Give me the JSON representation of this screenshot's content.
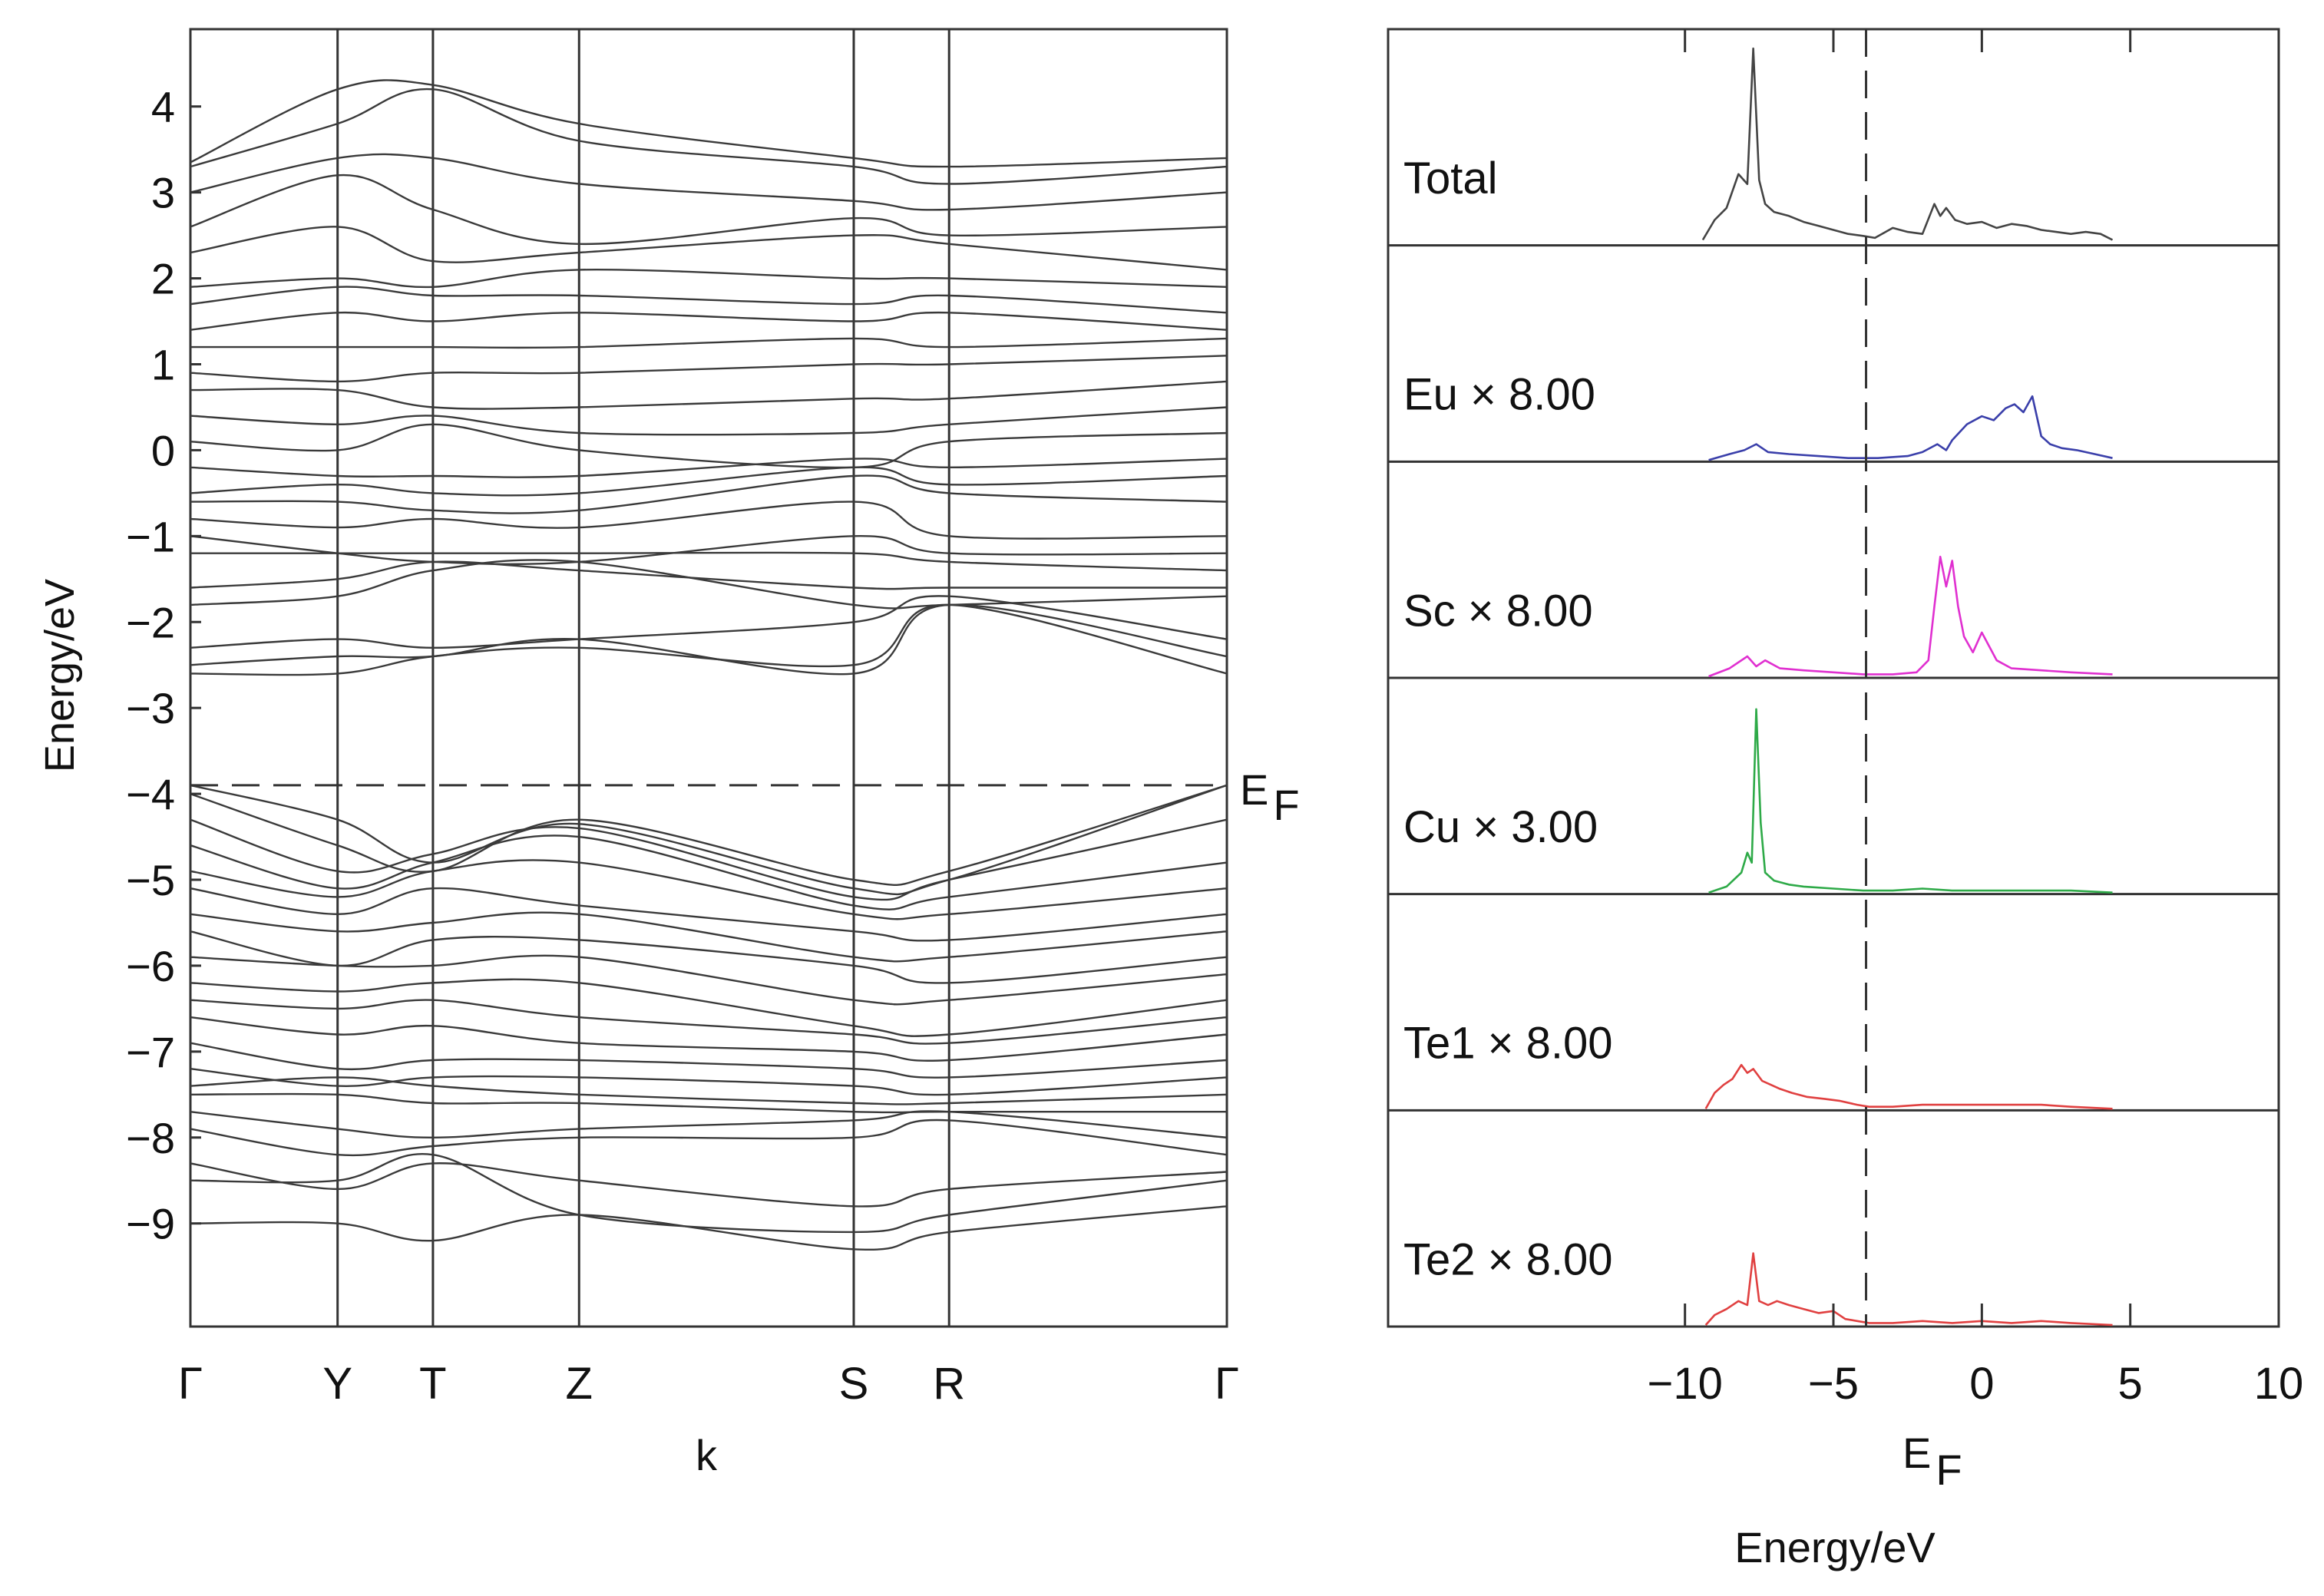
{
  "colors": {
    "axis": "#333333",
    "band": "#3a3a3a",
    "total": "#444444",
    "Eu": "#3a3faa",
    "Sc": "#e030d0",
    "Cu": "#2eaa48",
    "Te1": "#e04040",
    "Te2": "#e04040"
  },
  "chart_data": [
    {
      "type": "line",
      "name": "band_structure",
      "ylabel": "Energy/eV",
      "xlabel": "k",
      "ylim": [
        -10.2,
        4.9
      ],
      "yticks": [
        4,
        3,
        2,
        1,
        0,
        -1,
        -2,
        -3,
        -4,
        -5,
        -6,
        -7,
        -8,
        -9
      ],
      "ytick_labels": [
        "4",
        "3",
        "2",
        "1",
        "0",
        "−1",
        "−2",
        "−3",
        "−4",
        "−5",
        "−6",
        "−7",
        "−8",
        "−9"
      ],
      "kpoints": [
        "Γ",
        "Y",
        "T",
        "Z",
        "S",
        "R",
        "Γ"
      ],
      "kpositions": [
        0,
        0.142,
        0.234,
        0.375,
        0.64,
        0.732,
        1.0
      ],
      "fermi_level": -3.9,
      "fermi_label": "E",
      "fermi_subscript": "F",
      "bands": [
        [
          -9.0,
          -9.0,
          -9.2,
          -8.9,
          -9.3,
          -9.1,
          -8.8
        ],
        [
          -8.5,
          -8.5,
          -8.2,
          -8.9,
          -9.1,
          -8.9,
          -8.5
        ],
        [
          -8.3,
          -8.6,
          -8.3,
          -8.5,
          -8.8,
          -8.6,
          -8.4
        ],
        [
          -7.9,
          -8.2,
          -8.1,
          -8.0,
          -8.0,
          -7.8,
          -8.2
        ],
        [
          -7.7,
          -7.9,
          -8.0,
          -7.9,
          -7.8,
          -7.7,
          -8.0
        ],
        [
          -7.5,
          -7.5,
          -7.6,
          -7.6,
          -7.7,
          -7.7,
          -7.7
        ],
        [
          -7.4,
          -7.3,
          -7.4,
          -7.5,
          -7.6,
          -7.6,
          -7.5
        ],
        [
          -7.2,
          -7.4,
          -7.3,
          -7.3,
          -7.4,
          -7.5,
          -7.3
        ],
        [
          -6.9,
          -7.2,
          -7.1,
          -7.1,
          -7.2,
          -7.3,
          -7.1
        ],
        [
          -6.6,
          -6.8,
          -6.7,
          -6.9,
          -7.0,
          -7.1,
          -6.8
        ],
        [
          -6.4,
          -6.5,
          -6.4,
          -6.6,
          -6.8,
          -6.9,
          -6.6
        ],
        [
          -6.2,
          -6.3,
          -6.2,
          -6.2,
          -6.7,
          -6.8,
          -6.4
        ],
        [
          -5.9,
          -6.0,
          -6.0,
          -5.9,
          -6.4,
          -6.4,
          -6.1
        ],
        [
          -5.6,
          -6.0,
          -5.7,
          -5.7,
          -6.0,
          -6.2,
          -5.9
        ],
        [
          -5.4,
          -5.6,
          -5.5,
          -5.4,
          -5.9,
          -5.9,
          -5.6
        ],
        [
          -5.1,
          -5.4,
          -5.1,
          -5.3,
          -5.6,
          -5.7,
          -5.4
        ],
        [
          -4.9,
          -5.2,
          -4.9,
          -4.8,
          -5.4,
          -5.4,
          -5.1
        ],
        [
          -4.6,
          -5.1,
          -4.8,
          -4.5,
          -5.3,
          -5.2,
          -4.8
        ],
        [
          -4.3,
          -4.9,
          -4.7,
          -4.4,
          -5.2,
          -5.0,
          -4.3
        ],
        [
          -4.0,
          -4.6,
          -4.9,
          -4.3,
          -5.0,
          -4.9,
          -3.9
        ]
      ],
      "valence_bands_top": [
        [
          -3.9,
          -4.3,
          -4.8,
          -4.35,
          -5.1,
          -5.0,
          -3.9
        ]
      ],
      "conduction_bands": [
        [
          -2.6,
          -2.6,
          -2.4,
          -2.3,
          -2.5,
          -1.8,
          -2.6
        ],
        [
          -2.5,
          -2.4,
          -2.4,
          -2.2,
          -2.6,
          -1.8,
          -2.4
        ],
        [
          -2.3,
          -2.2,
          -2.3,
          -2.2,
          -2.0,
          -1.7,
          -2.2
        ],
        [
          -1.8,
          -1.7,
          -1.4,
          -1.3,
          -1.8,
          -1.8,
          -1.7
        ],
        [
          -1.6,
          -1.5,
          -1.3,
          -1.4,
          -1.6,
          -1.6,
          -1.6
        ],
        [
          -1.2,
          -1.2,
          -1.2,
          -1.2,
          -1.2,
          -1.3,
          -1.4
        ],
        [
          -1.0,
          -1.2,
          -1.3,
          -1.3,
          -1.0,
          -1.2,
          -1.2
        ],
        [
          -0.8,
          -0.9,
          -0.8,
          -0.9,
          -0.6,
          -1.0,
          -1.0
        ],
        [
          -0.6,
          -0.6,
          -0.7,
          -0.7,
          -0.3,
          -0.5,
          -0.6
        ],
        [
          -0.5,
          -0.4,
          -0.5,
          -0.5,
          -0.2,
          -0.4,
          -0.3
        ],
        [
          -0.2,
          -0.3,
          -0.3,
          -0.3,
          -0.1,
          -0.2,
          -0.1
        ],
        [
          0.1,
          0.0,
          0.3,
          0.0,
          -0.2,
          0.1,
          0.2
        ],
        [
          0.4,
          0.3,
          0.4,
          0.2,
          0.2,
          0.3,
          0.5
        ],
        [
          0.7,
          0.7,
          0.5,
          0.5,
          0.6,
          0.6,
          0.8
        ],
        [
          0.9,
          0.8,
          0.9,
          0.9,
          1.0,
          1.0,
          1.1
        ],
        [
          1.2,
          1.2,
          1.2,
          1.2,
          1.3,
          1.2,
          1.3
        ],
        [
          1.4,
          1.6,
          1.5,
          1.6,
          1.5,
          1.6,
          1.4
        ],
        [
          1.7,
          1.9,
          1.8,
          1.8,
          1.7,
          1.8,
          1.6
        ],
        [
          1.9,
          2.0,
          1.9,
          2.1,
          2.0,
          2.0,
          1.9
        ],
        [
          2.3,
          2.6,
          2.2,
          2.3,
          2.5,
          2.4,
          2.1
        ],
        [
          2.6,
          3.2,
          2.8,
          2.4,
          2.7,
          2.5,
          2.6
        ],
        [
          3.0,
          3.4,
          3.4,
          3.1,
          2.9,
          2.8,
          3.0
        ],
        [
          3.3,
          3.8,
          4.2,
          3.6,
          3.3,
          3.1,
          3.3
        ],
        [
          3.35,
          4.2,
          4.25,
          3.8,
          3.4,
          3.3,
          3.4
        ]
      ]
    },
    {
      "type": "line",
      "name": "density_of_states",
      "xlabel": "Energy/eV",
      "xlim": [
        -20,
        10
      ],
      "xticks": [
        -10,
        -5,
        0,
        5,
        10
      ],
      "xtick_labels": [
        "−10",
        "−5",
        "0",
        "5",
        "10"
      ],
      "fermi_level": -3.9,
      "fermi_label": "E",
      "fermi_subscript": "F",
      "panels": [
        {
          "label": "Total",
          "color_key": "total",
          "x": [
            -9.4,
            -9.0,
            -8.6,
            -8.2,
            -7.9,
            -7.7,
            -7.5,
            -7.3,
            -7.0,
            -6.5,
            -6.0,
            -5.5,
            -5.0,
            -4.5,
            -4.0,
            -3.6,
            -3.0,
            -2.5,
            -2.0,
            -1.6,
            -1.4,
            -1.2,
            -0.9,
            -0.5,
            0.0,
            0.5,
            1.0,
            1.5,
            2.0,
            2.5,
            3.0,
            3.5,
            4.0,
            4.4
          ],
          "y": [
            0.02,
            0.12,
            0.18,
            0.35,
            0.3,
            0.98,
            0.32,
            0.2,
            0.16,
            0.14,
            0.11,
            0.09,
            0.07,
            0.05,
            0.04,
            0.03,
            0.08,
            0.06,
            0.05,
            0.2,
            0.14,
            0.18,
            0.12,
            0.1,
            0.11,
            0.08,
            0.1,
            0.09,
            0.07,
            0.06,
            0.05,
            0.06,
            0.05,
            0.02
          ]
        },
        {
          "label": "Eu ×  8.00",
          "color_key": "Eu",
          "x": [
            -9.2,
            -8.5,
            -8.0,
            -7.6,
            -7.2,
            -6.5,
            -5.5,
            -4.5,
            -3.5,
            -2.5,
            -2.0,
            -1.5,
            -1.2,
            -1.0,
            -0.5,
            0.0,
            0.4,
            0.8,
            1.1,
            1.4,
            1.7,
            2.0,
            2.3,
            2.7,
            3.2,
            3.8,
            4.4
          ],
          "y": [
            0.0,
            0.03,
            0.05,
            0.08,
            0.04,
            0.03,
            0.02,
            0.01,
            0.01,
            0.02,
            0.04,
            0.08,
            0.05,
            0.1,
            0.18,
            0.22,
            0.2,
            0.26,
            0.28,
            0.24,
            0.32,
            0.12,
            0.08,
            0.06,
            0.05,
            0.03,
            0.01
          ]
        },
        {
          "label": "Sc ×  8.00",
          "color_key": "Sc",
          "x": [
            -9.2,
            -8.5,
            -7.9,
            -7.6,
            -7.3,
            -6.8,
            -6.0,
            -5.0,
            -4.0,
            -3.0,
            -2.2,
            -1.8,
            -1.6,
            -1.4,
            -1.2,
            -1.0,
            -0.8,
            -0.6,
            -0.3,
            0.0,
            0.5,
            1.0,
            2.0,
            3.0,
            4.4
          ],
          "y": [
            0.0,
            0.04,
            0.1,
            0.05,
            0.08,
            0.04,
            0.03,
            0.02,
            0.01,
            0.01,
            0.02,
            0.08,
            0.35,
            0.6,
            0.45,
            0.58,
            0.35,
            0.2,
            0.12,
            0.22,
            0.08,
            0.04,
            0.03,
            0.02,
            0.01
          ]
        },
        {
          "label": "Cu ×  3.00",
          "color_key": "Cu",
          "x": [
            -9.2,
            -8.6,
            -8.1,
            -7.9,
            -7.75,
            -7.6,
            -7.45,
            -7.3,
            -7.0,
            -6.5,
            -6.0,
            -5.0,
            -4.0,
            -3.0,
            -2.0,
            -1.0,
            0.0,
            1.0,
            2.0,
            3.0,
            4.4
          ],
          "y": [
            0.0,
            0.03,
            0.1,
            0.2,
            0.15,
            0.92,
            0.35,
            0.1,
            0.06,
            0.04,
            0.03,
            0.02,
            0.01,
            0.01,
            0.02,
            0.01,
            0.01,
            0.01,
            0.01,
            0.01,
            0.0
          ]
        },
        {
          "label": "Te1 × 8.00",
          "color_key": "Te1",
          "x": [
            -9.3,
            -9.0,
            -8.7,
            -8.4,
            -8.1,
            -7.9,
            -7.7,
            -7.4,
            -7.1,
            -6.8,
            -6.4,
            -5.9,
            -5.3,
            -4.8,
            -4.2,
            -3.8,
            -3.0,
            -2.0,
            -1.0,
            0.0,
            1.0,
            2.0,
            3.0,
            4.4
          ],
          "y": [
            0.0,
            0.08,
            0.12,
            0.15,
            0.22,
            0.18,
            0.2,
            0.14,
            0.12,
            0.1,
            0.08,
            0.06,
            0.05,
            0.04,
            0.02,
            0.01,
            0.01,
            0.02,
            0.02,
            0.02,
            0.02,
            0.02,
            0.01,
            0.0
          ]
        },
        {
          "label": "Te2 × 8.00",
          "color_key": "Te2",
          "x": [
            -9.3,
            -9.0,
            -8.6,
            -8.2,
            -7.9,
            -7.7,
            -7.5,
            -7.2,
            -6.9,
            -6.5,
            -6.0,
            -5.5,
            -5.0,
            -4.6,
            -4.2,
            -3.8,
            -3.0,
            -2.0,
            -1.0,
            0.0,
            1.0,
            2.0,
            3.0,
            4.4
          ],
          "y": [
            0.0,
            0.05,
            0.08,
            0.12,
            0.1,
            0.36,
            0.12,
            0.1,
            0.12,
            0.1,
            0.08,
            0.06,
            0.07,
            0.03,
            0.02,
            0.01,
            0.01,
            0.02,
            0.01,
            0.02,
            0.01,
            0.02,
            0.01,
            0.0
          ]
        }
      ]
    }
  ]
}
